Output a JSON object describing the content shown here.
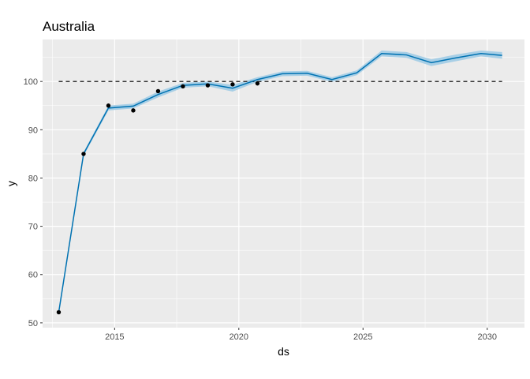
{
  "chart_data": {
    "type": "line",
    "title": "Australia",
    "xlabel": "ds",
    "ylabel": "y",
    "xlim": [
      2012.1,
      2031.5
    ],
    "ylim": [
      49,
      108.7
    ],
    "x_ticks": [
      2015,
      2020,
      2025,
      2030
    ],
    "x_tick_labels": [
      "2015",
      "2020",
      "2025",
      "2030"
    ],
    "y_ticks": [
      50,
      60,
      70,
      80,
      90,
      100
    ],
    "y_tick_labels": [
      "50",
      "60",
      "70",
      "80",
      "90",
      "100"
    ],
    "grid": true,
    "reference_line": {
      "y": 100,
      "style": "dashed",
      "x_range": [
        2012.75,
        2030.6
      ]
    },
    "observed": {
      "x": [
        2012.75,
        2013.75,
        2014.75,
        2015.75,
        2016.75,
        2017.75,
        2018.75,
        2019.75,
        2020.75
      ],
      "y": [
        52.2,
        85.0,
        95.0,
        94.0,
        98.0,
        99.0,
        99.2,
        99.4,
        99.6
      ]
    },
    "forecast": {
      "x": [
        2012.75,
        2013.75,
        2014.75,
        2015.75,
        2016.75,
        2017.75,
        2018.75,
        2019.75,
        2020.75,
        2021.75,
        2022.75,
        2023.75,
        2024.75,
        2025.75,
        2026.75,
        2027.75,
        2028.75,
        2029.75,
        2030.6
      ],
      "yhat": [
        52.2,
        85.0,
        94.5,
        94.9,
        97.3,
        99.2,
        99.5,
        98.6,
        100.4,
        101.6,
        101.7,
        100.4,
        101.8,
        105.8,
        105.5,
        103.9,
        104.9,
        105.8,
        105.4
      ],
      "lower": [
        52.0,
        84.6,
        94.0,
        94.4,
        96.7,
        98.7,
        99.0,
        97.9,
        99.9,
        101.1,
        101.2,
        99.9,
        101.3,
        105.2,
        104.9,
        103.2,
        104.2,
        105.2,
        104.7
      ],
      "upper": [
        52.4,
        85.4,
        95.0,
        95.4,
        97.9,
        99.7,
        100.0,
        99.3,
        100.9,
        102.1,
        102.2,
        100.9,
        102.3,
        106.4,
        106.1,
        104.6,
        105.6,
        106.4,
        106.1
      ]
    },
    "colors": {
      "panel": "#ebebeb",
      "grid_major": "#ffffff",
      "line": "#0072b2",
      "band": "#a8cfe6",
      "points": "#000000",
      "reference": "#333333"
    }
  }
}
